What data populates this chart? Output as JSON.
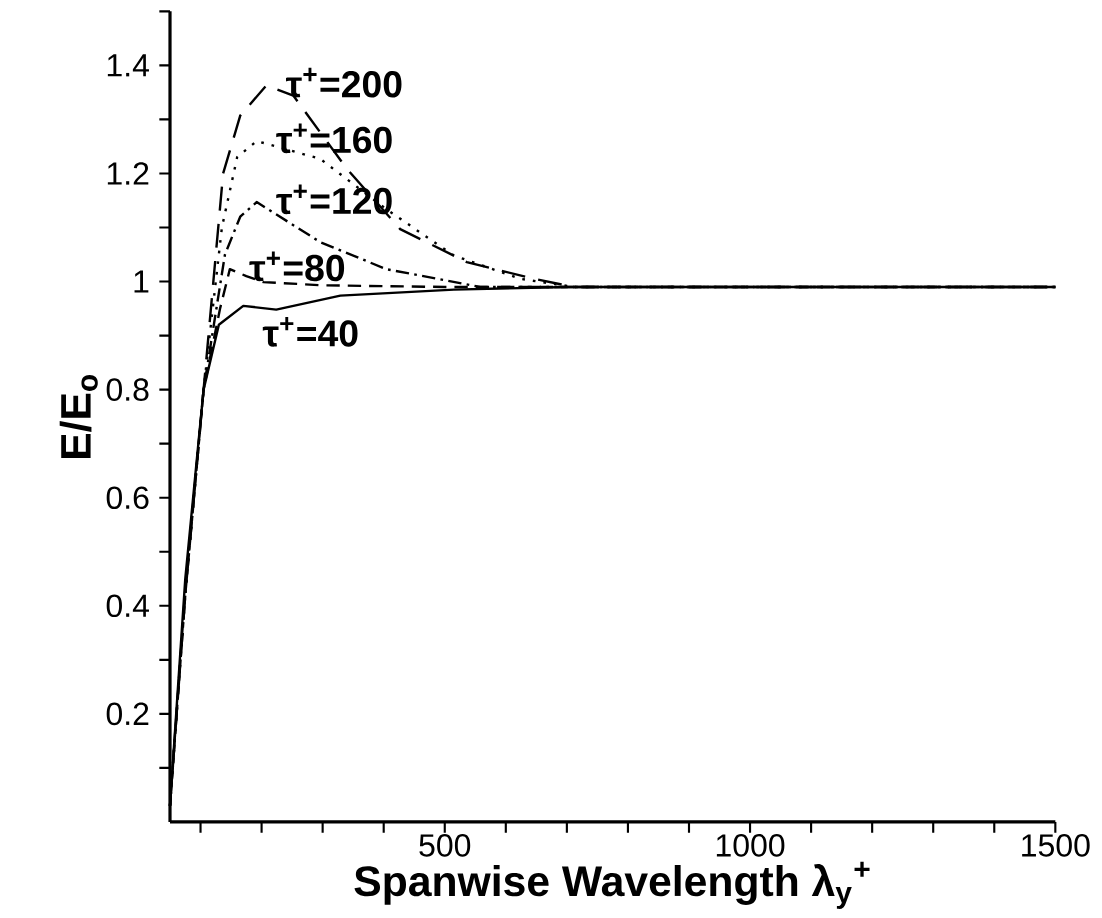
{
  "chart_data": {
    "type": "line",
    "xlabel": "Spanwise Wavelength λ$_{y}$$^{+}$",
    "ylabel": "E/E$_{o}$",
    "xlim": [
      50,
      1500
    ],
    "ylim": [
      0,
      1.5
    ],
    "xticks": [
      {
        "value": 100,
        "label": null
      },
      {
        "value": 200,
        "label": null
      },
      {
        "value": 300,
        "label": null
      },
      {
        "value": 400,
        "label": null
      },
      500,
      {
        "value": 600,
        "label": null
      },
      {
        "value": 700,
        "label": null
      },
      {
        "value": 800,
        "label": null
      },
      {
        "value": 900,
        "label": null
      },
      1000,
      {
        "value": 1100,
        "label": null
      },
      {
        "value": 1200,
        "label": null
      },
      {
        "value": 1300,
        "label": null
      },
      {
        "value": 1400,
        "label": null
      },
      1500
    ],
    "yticks": [
      {
        "value": 0.1,
        "label": null
      },
      0.2,
      {
        "value": 0.3,
        "label": null
      },
      0.4,
      {
        "value": 0.5,
        "label": null
      },
      0.6,
      {
        "value": 0.7,
        "label": null
      },
      0.8,
      {
        "value": 0.9,
        "label": null
      },
      1,
      {
        "value": 1.1,
        "label": null
      },
      1.2,
      {
        "value": 1.3,
        "label": null
      },
      1.4,
      {
        "value": 1.5,
        "label": null
      }
    ],
    "grid": false,
    "marker": "none",
    "series": [
      {
        "name": "τ$^{+}$=40",
        "color": "#000000",
        "line_style": "solid",
        "x": [
          50,
          75,
          105,
          130,
          170,
          224,
          329,
          515,
          700,
          1500
        ],
        "values": [
          0.03,
          0.45,
          0.8,
          0.92,
          0.955,
          0.948,
          0.974,
          0.985,
          0.99,
          0.99
        ]
      },
      {
        "name": "τ$^{+}$=80",
        "color": "#000000",
        "line_style": "dashed",
        "x": [
          50,
          75,
          105,
          132,
          148,
          175,
          203,
          300,
          500,
          1500
        ],
        "values": [
          0.03,
          0.43,
          0.8,
          0.95,
          1.023,
          1.01,
          0.999,
          0.993,
          0.99,
          0.99
        ]
      },
      {
        "name": "τ$^{+}$=120",
        "color": "#000000",
        "line_style": "dashdot",
        "x": [
          50,
          75,
          105,
          140,
          165,
          192,
          296,
          404,
          558,
          1500
        ],
        "values": [
          0.03,
          0.42,
          0.8,
          1.05,
          1.12,
          1.147,
          1.073,
          1.023,
          0.99,
          0.99
        ]
      },
      {
        "name": "τ$^{+}$=160",
        "color": "#000000",
        "line_style": "dotted",
        "x": [
          50,
          75,
          105,
          135,
          160,
          192,
          296,
          404,
          515,
          624,
          711,
          1500
        ],
        "values": [
          0.03,
          0.42,
          0.8,
          1.1,
          1.23,
          1.26,
          1.227,
          1.134,
          1.048,
          1.005,
          0.99,
          0.99
        ]
      },
      {
        "name": "τ$^{+}$=200",
        "color": "#000000",
        "line_style": "longdash",
        "x": [
          50,
          75,
          105,
          137,
          165,
          208,
          252,
          340,
          427,
          536,
          646,
          711,
          1500
        ],
        "values": [
          0.03,
          0.42,
          0.8,
          1.2,
          1.307,
          1.363,
          1.344,
          1.208,
          1.097,
          1.036,
          1.005,
          0.99,
          0.99
        ]
      }
    ]
  }
}
